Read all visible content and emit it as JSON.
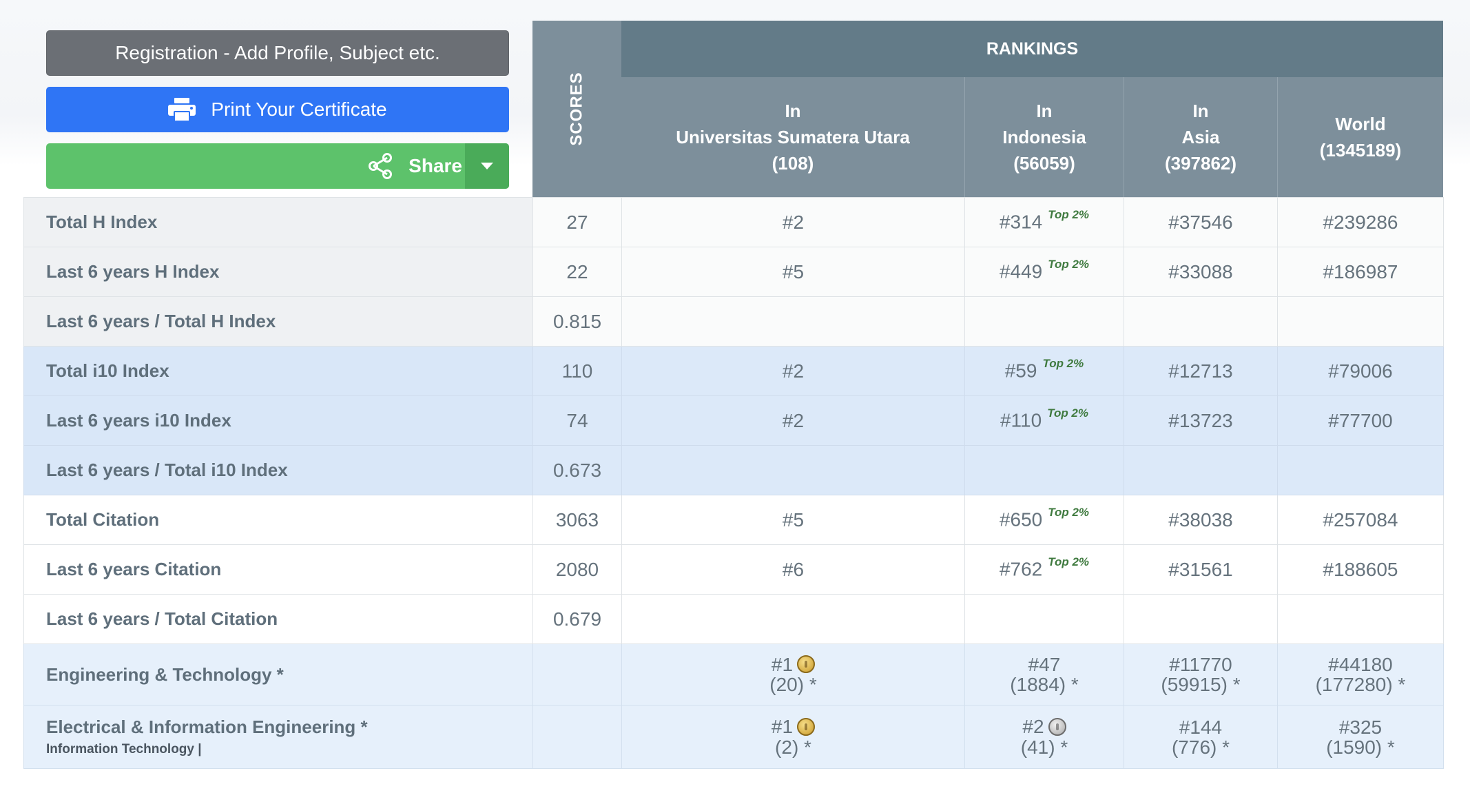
{
  "actions": {
    "register_label": "Registration - Add Profile, Subject etc.",
    "print_label": "Print Your Certificate",
    "share_label": "Share",
    "colors": {
      "register": "#6b6f75",
      "print": "#2f75f5",
      "share": "#5dc26b"
    }
  },
  "header": {
    "scores": "SCORES",
    "rankings": "RANKINGS",
    "columns": [
      {
        "line1": "In",
        "line2": "Universitas Sumatera Utara",
        "line3": "(108)"
      },
      {
        "line1": "In",
        "line2": "Indonesia",
        "line3": "(56059)"
      },
      {
        "line1": "In",
        "line2": "Asia",
        "line3": "(397862)"
      },
      {
        "line1": "World",
        "line2": "(1345189)"
      }
    ]
  },
  "rows": [
    {
      "label": "Total H Index",
      "score": "27",
      "uni": "#2",
      "country": "#314",
      "country_badge": "Top 2%",
      "asia": "#37546",
      "world": "#239286"
    },
    {
      "label": "Last 6 years H Index",
      "score": "22",
      "uni": "#5",
      "country": "#449",
      "country_badge": "Top 2%",
      "asia": "#33088",
      "world": "#186987"
    },
    {
      "label": "Last 6 years / Total H Index",
      "score": "0.815"
    },
    {
      "label": "Total i10 Index",
      "score": "110",
      "uni": "#2",
      "country": "#59",
      "country_badge": "Top 2%",
      "asia": "#12713",
      "world": "#79006"
    },
    {
      "label": "Last 6 years i10 Index",
      "score": "74",
      "uni": "#2",
      "country": "#110",
      "country_badge": "Top 2%",
      "asia": "#13723",
      "world": "#77700"
    },
    {
      "label": "Last 6 years / Total i10 Index",
      "score": "0.673"
    },
    {
      "label": "Total Citation",
      "score": "3063",
      "uni": "#5",
      "country": "#650",
      "country_badge": "Top 2%",
      "asia": "#38038",
      "world": "#257084"
    },
    {
      "label": "Last 6 years Citation",
      "score": "2080",
      "uni": "#6",
      "country": "#762",
      "country_badge": "Top 2%",
      "asia": "#31561",
      "world": "#188605"
    },
    {
      "label": "Last 6 years / Total Citation",
      "score": "0.679"
    }
  ],
  "subjects": [
    {
      "label": "Engineering & Technology *",
      "uni": {
        "rank": "#1",
        "total": "(20) *",
        "medal": "gold"
      },
      "country": {
        "rank": "#47",
        "total": "(1884) *"
      },
      "asia": {
        "rank": "#11770",
        "total": "(59915) *"
      },
      "world": {
        "rank": "#44180",
        "total": "(177280) *"
      }
    },
    {
      "label": "Electrical & Information Engineering *",
      "sublabel": "Information Technology |",
      "uni": {
        "rank": "#1",
        "total": "(2) *",
        "medal": "gold"
      },
      "country": {
        "rank": "#2",
        "total": "(41) *",
        "medal": "silver"
      },
      "asia": {
        "rank": "#144",
        "total": "(776) *"
      },
      "world": {
        "rank": "#325",
        "total": "(1590) *"
      }
    }
  ]
}
